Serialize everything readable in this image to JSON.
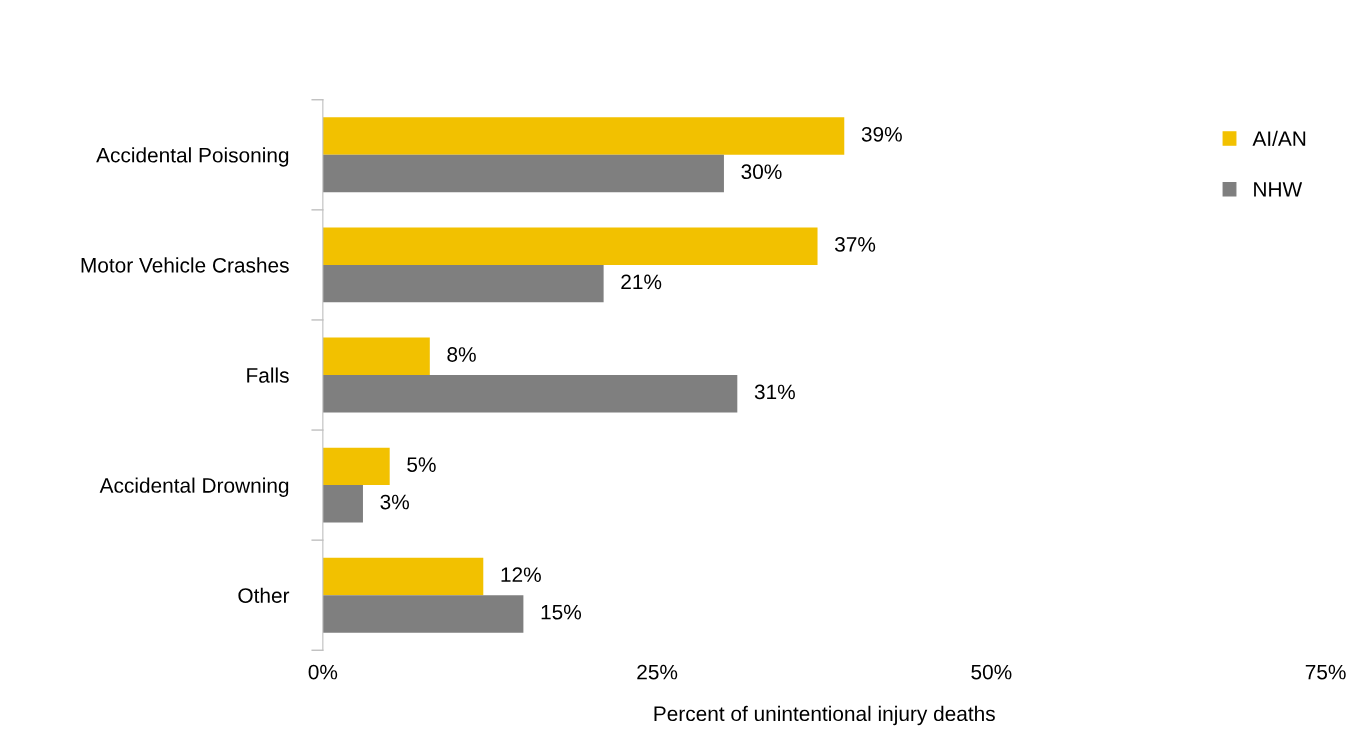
{
  "chart_data": {
    "type": "bar",
    "orientation": "horizontal",
    "categories": [
      "Accidental Poisoning",
      "Motor Vehicle Crashes",
      "Falls",
      "Accidental Drowning",
      "Other"
    ],
    "series": [
      {
        "name": "AI/AN",
        "color": "#f2c100",
        "values": [
          39,
          37,
          8,
          5,
          12
        ],
        "value_labels": [
          "39%",
          "37%",
          "8%",
          "5%",
          "12%"
        ]
      },
      {
        "name": "NHW",
        "color": "#7f7f7f",
        "values": [
          30,
          21,
          31,
          3,
          15
        ],
        "value_labels": [
          "30%",
          "21%",
          "31%",
          "3%",
          "15%"
        ]
      }
    ],
    "xlabel": "Percent of unintentional injury deaths",
    "xlim": [
      0,
      75
    ],
    "xticks": [
      {
        "value": 0,
        "label": "0%"
      },
      {
        "value": 25,
        "label": "25%"
      },
      {
        "value": 50,
        "label": "50%"
      },
      {
        "value": 75,
        "label": "75%"
      }
    ],
    "grid": false,
    "legend": "right"
  }
}
